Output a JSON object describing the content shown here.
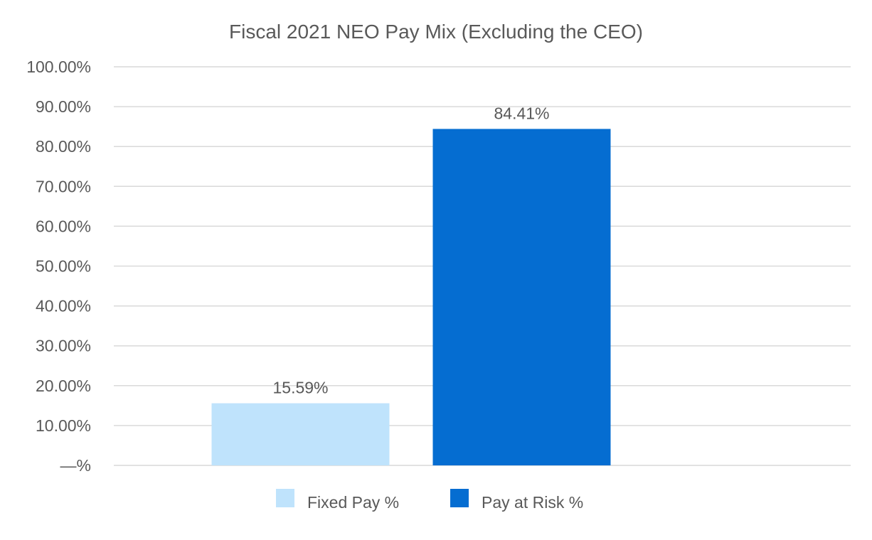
{
  "chart_data": {
    "type": "bar",
    "title": "Fiscal 2021 NEO Pay Mix (Excluding the CEO)",
    "xlabel": "",
    "ylabel": "",
    "ylim": [
      0,
      100
    ],
    "yticks": [
      0,
      10,
      20,
      30,
      40,
      50,
      60,
      70,
      80,
      90,
      100
    ],
    "ytick_labels": [
      "—%",
      "10.00%",
      "20.00%",
      "30.00%",
      "40.00%",
      "50.00%",
      "60.00%",
      "70.00%",
      "80.00%",
      "90.00%",
      "100.00%"
    ],
    "grid": true,
    "legend_position": "bottom",
    "series": [
      {
        "name": "Fixed Pay %",
        "value": 15.59,
        "label": "15.59%",
        "color": "#bfe3fc"
      },
      {
        "name": "Pay at Risk %",
        "value": 84.41,
        "label": "84.41%",
        "color": "#056dd1"
      }
    ]
  }
}
